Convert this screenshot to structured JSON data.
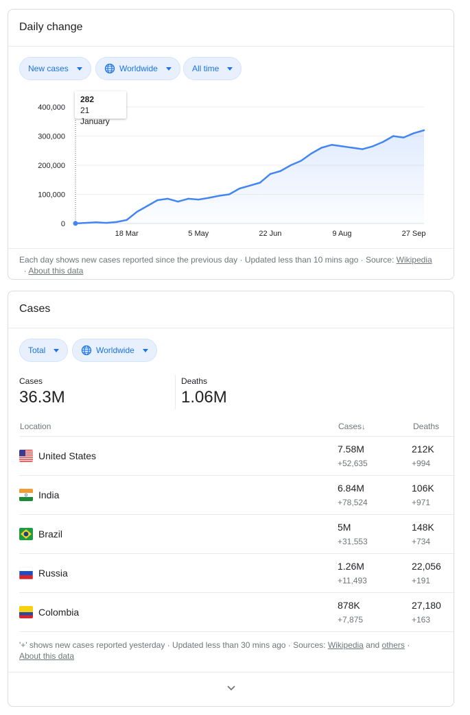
{
  "daily_change": {
    "title": "Daily change",
    "filters": {
      "metric": "New cases",
      "region": "Worldwide",
      "range": "All time"
    },
    "tooltip": {
      "value": "282",
      "date": "21 January"
    },
    "footnote": {
      "text": "Each day shows new cases reported since the previous day · Updated less than 10 mins ago · Source: ",
      "source_link": "Wikipedia",
      "sep": " · ",
      "about_link": "About this data"
    }
  },
  "chart_data": {
    "type": "area",
    "title": "",
    "xlabel": "",
    "ylabel": "",
    "x_tick_labels": [
      "18 Mar",
      "5 May",
      "22 Jun",
      "9 Aug",
      "27 Sep"
    ],
    "y_tick_labels": [
      "400,000",
      "300,000",
      "200,000",
      "100,000",
      "0"
    ],
    "ylim": [
      0,
      400000
    ],
    "grid": true,
    "series": [
      {
        "color": "#4285f4",
        "x": [
          "21 Jan",
          "1 Feb",
          "15 Feb",
          "1 Mar",
          "10 Mar",
          "18 Mar",
          "25 Mar",
          "1 Apr",
          "8 Apr",
          "15 Apr",
          "22 Apr",
          "29 Apr",
          "5 May",
          "12 May",
          "19 May",
          "26 May",
          "2 Jun",
          "9 Jun",
          "16 Jun",
          "22 Jun",
          "29 Jun",
          "6 Jul",
          "13 Jul",
          "20 Jul",
          "27 Jul",
          "3 Aug",
          "9 Aug",
          "16 Aug",
          "23 Aug",
          "30 Aug",
          "6 Sep",
          "13 Sep",
          "20 Sep",
          "27 Sep",
          "6 Oct"
        ],
        "values": [
          282,
          2000,
          4000,
          2000,
          5000,
          12000,
          40000,
          60000,
          80000,
          85000,
          75000,
          85000,
          82000,
          88000,
          95000,
          100000,
          120000,
          130000,
          140000,
          170000,
          180000,
          200000,
          215000,
          240000,
          260000,
          270000,
          265000,
          260000,
          255000,
          265000,
          280000,
          300000,
          295000,
          310000,
          320000
        ]
      }
    ]
  },
  "cases": {
    "title": "Cases",
    "filters": {
      "metric": "Total",
      "region": "Worldwide"
    },
    "totals": {
      "cases_label": "Cases",
      "cases_value": "36.3M",
      "deaths_label": "Deaths",
      "deaths_value": "1.06M"
    },
    "table": {
      "headers": {
        "location": "Location",
        "cases": "Cases",
        "deaths": "Deaths"
      },
      "rows": [
        {
          "name": "United States",
          "flag": "us-flag",
          "cases": "7.58M",
          "cases_new": "+52,635",
          "deaths": "212K",
          "deaths_new": "+994"
        },
        {
          "name": "India",
          "flag": "india-flag",
          "cases": "6.84M",
          "cases_new": "+78,524",
          "deaths": "106K",
          "deaths_new": "+971"
        },
        {
          "name": "Brazil",
          "flag": "brazil-flag",
          "cases": "5M",
          "cases_new": "+31,553",
          "deaths": "148K",
          "deaths_new": "+734"
        },
        {
          "name": "Russia",
          "flag": "russia-flag",
          "cases": "1.26M",
          "cases_new": "+11,493",
          "deaths": "22,056",
          "deaths_new": "+191"
        },
        {
          "name": "Colombia",
          "flag": "colombia-flag",
          "cases": "878K",
          "cases_new": "+7,875",
          "deaths": "27,180",
          "deaths_new": "+163"
        }
      ]
    },
    "footnote": {
      "text": "'+' shows new cases reported yesterday · Updated less than 30 mins ago · Sources: ",
      "source_link": "Wikipedia",
      "and": " and ",
      "others_link": "others",
      "sep": " · ",
      "about_link": "About this data"
    }
  },
  "colors": {
    "accent": "#1a73e8",
    "line": "#4285f4",
    "chip_bg": "#e8f0fe"
  }
}
